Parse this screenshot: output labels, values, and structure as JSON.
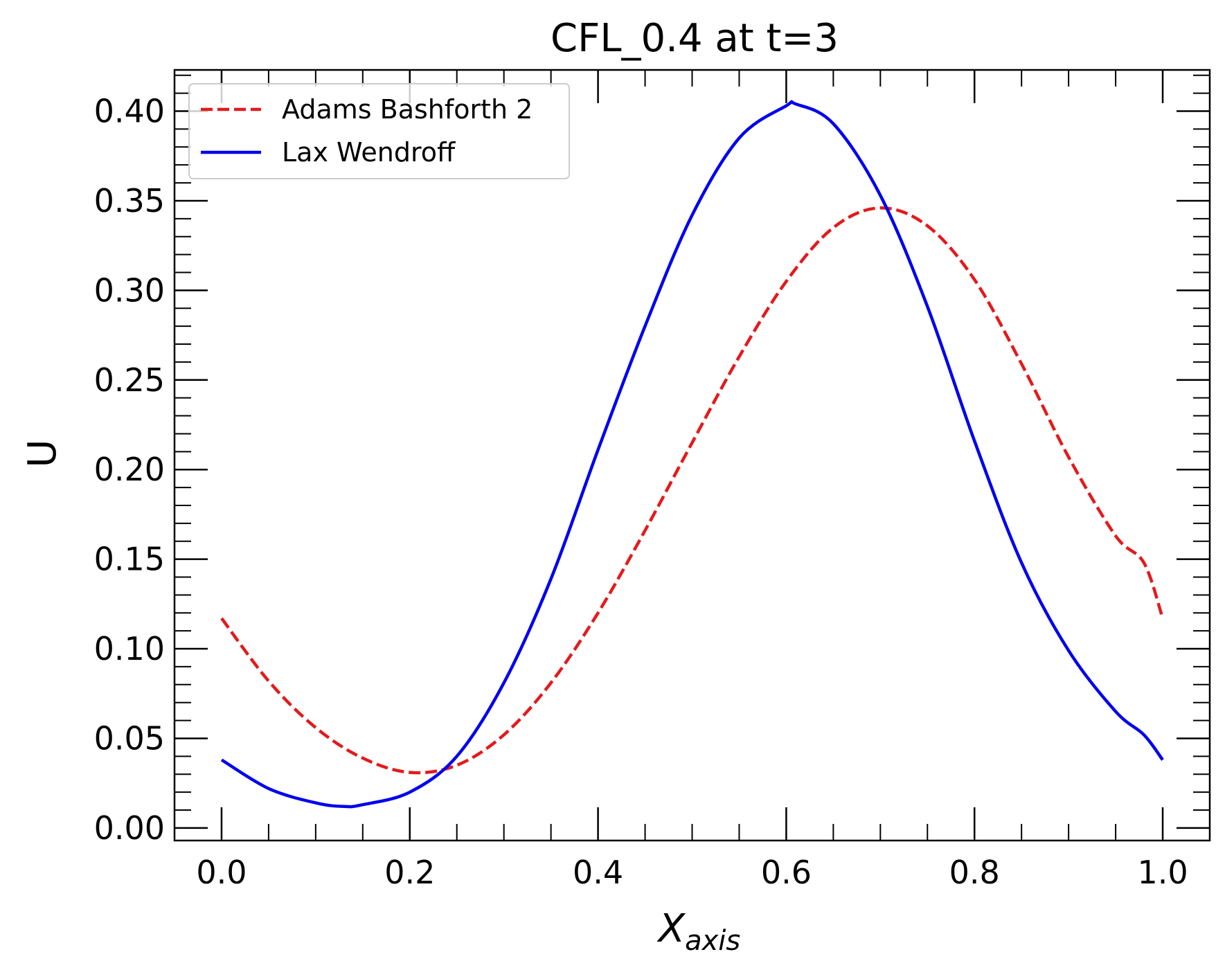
{
  "chart_data": {
    "type": "line",
    "title": "CFL_0.4 at t=3",
    "xlabel": {
      "base": "X",
      "sub": "axis"
    },
    "ylabel": "U",
    "xlim": [
      -0.05,
      1.05
    ],
    "ylim": [
      -0.007,
      0.423
    ],
    "xticks": [
      0.0,
      0.2,
      0.4,
      0.6,
      0.8,
      1.0
    ],
    "xtick_labels": [
      "0.0",
      "0.2",
      "0.4",
      "0.6",
      "0.8",
      "1.0"
    ],
    "yticks": [
      0.0,
      0.05,
      0.1,
      0.15,
      0.2,
      0.25,
      0.3,
      0.35,
      0.4
    ],
    "ytick_labels": [
      "0.00",
      "0.05",
      "0.10",
      "0.15",
      "0.20",
      "0.25",
      "0.30",
      "0.35",
      "0.40"
    ],
    "legend_position": "top-left",
    "grid": false,
    "series": [
      {
        "name": "Adams Bashforth 2",
        "color": "#e31a1c",
        "dash": "dashed",
        "x": [
          0.0,
          0.05,
          0.1,
          0.15,
          0.2,
          0.25,
          0.3,
          0.35,
          0.4,
          0.45,
          0.5,
          0.55,
          0.6,
          0.65,
          0.7,
          0.75,
          0.8,
          0.85,
          0.9,
          0.95,
          0.98,
          1.0
        ],
        "y": [
          0.117,
          0.082,
          0.056,
          0.039,
          0.031,
          0.035,
          0.052,
          0.081,
          0.12,
          0.166,
          0.215,
          0.263,
          0.305,
          0.335,
          0.346,
          0.336,
          0.306,
          0.259,
          0.207,
          0.163,
          0.148,
          0.117
        ]
      },
      {
        "name": "Lax Wendroff",
        "color": "#0000ee",
        "dash": "solid",
        "x": [
          0.0,
          0.05,
          0.1,
          0.13,
          0.15,
          0.2,
          0.25,
          0.3,
          0.35,
          0.4,
          0.45,
          0.5,
          0.55,
          0.6,
          0.61,
          0.65,
          0.7,
          0.75,
          0.8,
          0.85,
          0.9,
          0.95,
          0.98,
          1.0
        ],
        "y": [
          0.038,
          0.022,
          0.014,
          0.012,
          0.013,
          0.02,
          0.04,
          0.081,
          0.139,
          0.211,
          0.28,
          0.342,
          0.385,
          0.403,
          0.404,
          0.393,
          0.353,
          0.291,
          0.216,
          0.148,
          0.099,
          0.065,
          0.052,
          0.038
        ]
      }
    ]
  }
}
